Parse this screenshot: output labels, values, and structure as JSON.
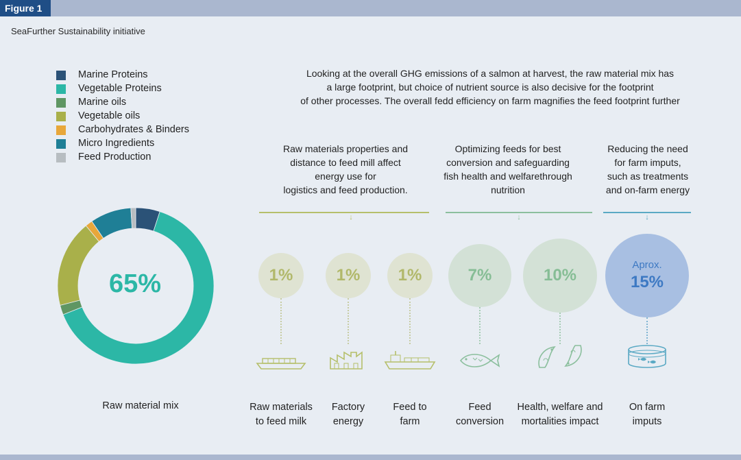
{
  "figure_label": "Figure 1",
  "subtitle": "SeaFurther Sustainability initiative",
  "intro_text": "Looking at the overall GHG emissions of a salmon at harvest, the raw material mix has\na large footprint, but choice of nutrient source is also decisive for the footprint\nof other processes. The overall fedd efficiency on farm magnifies the feed footprint further",
  "section_heads": [
    "Raw materials properties and\ndistance to feed mill affect\nenergy use for\nlogistics and feed production.",
    "Optimizing feeds for best\nconversion and safeguarding\nfish health and welfarethrough\nnutrition",
    "Reducing the need\nfor farm imputs,\nsuch as treatments\nand on-farm energy"
  ],
  "colors": {
    "header_bar": "#aab7cf",
    "figure_tab": "#1f4e86",
    "background": "#e8edf3",
    "group_logistics": "#b5bf6a",
    "group_feed": "#8bbf9d",
    "group_farm": "#5aa9c4"
  },
  "chart_data": [
    {
      "type": "pie",
      "title": "",
      "center_label": "65%",
      "caption": "Raw material mix",
      "legend_position": "top-left",
      "categories": [
        "Marine Proteins",
        "Vegetable Proteins",
        "Marine oils",
        "Vegetable oils",
        "Carbohydrates & Binders",
        "Micro Ingredients",
        "Feed Production"
      ],
      "values": [
        5,
        64,
        2,
        18,
        1.5,
        8.5,
        1
      ],
      "colors": [
        "#2b5277",
        "#2cb7a6",
        "#5f9663",
        "#a9b04a",
        "#e8a73a",
        "#1f7f96",
        "#b7bdc1"
      ]
    },
    {
      "type": "bubble",
      "categories": [
        "Raw materials\nto feed milk",
        "Factory\nenergy",
        "Feed to\nfarm",
        "Feed\nconversion",
        "Health, welfare and\nmortalities impact",
        "On farm\nimputs"
      ],
      "value_labels": [
        "1%",
        "1%",
        "1%",
        "7%",
        "10%",
        "15%"
      ],
      "value_prefixes": [
        "",
        "",
        "",
        "",
        "",
        "Aprox."
      ],
      "values": [
        1,
        1,
        1,
        7,
        10,
        15
      ],
      "icons": [
        "cargo-ship-icon",
        "factory-icon",
        "feed-vessel-icon",
        "fish-icon",
        "salmon-pair-icon",
        "fish-pen-icon"
      ]
    }
  ]
}
